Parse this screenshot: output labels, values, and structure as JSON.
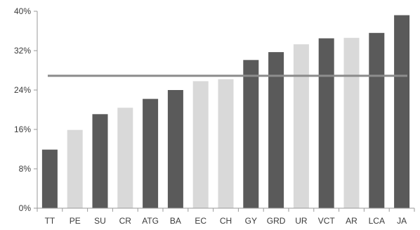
{
  "chart_data": {
    "type": "bar",
    "title": "",
    "xlabel": "",
    "ylabel": "",
    "categories": [
      "TT",
      "PE",
      "SU",
      "CR",
      "ATG",
      "BA",
      "EC",
      "CH",
      "GY",
      "GRD",
      "UR",
      "VCT",
      "AR",
      "LCA",
      "JA"
    ],
    "values": [
      11.9,
      15.9,
      19.1,
      20.4,
      22.2,
      24.0,
      25.8,
      26.2,
      30.1,
      31.7,
      33.3,
      34.5,
      34.6,
      35.6,
      39.2
    ],
    "bar_colors": [
      "#5a5a5a",
      "#d9d9d9",
      "#5a5a5a",
      "#d9d9d9",
      "#5a5a5a",
      "#5a5a5a",
      "#d9d9d9",
      "#d9d9d9",
      "#5a5a5a",
      "#5a5a5a",
      "#d9d9d9",
      "#5a5a5a",
      "#d9d9d9",
      "#5a5a5a",
      "#5a5a5a"
    ],
    "reference_line": 26.9,
    "ylim": [
      0,
      40
    ],
    "yticks": [
      0,
      8,
      16,
      24,
      32,
      40
    ],
    "ytick_labels": [
      "0%",
      "8%",
      "16%",
      "24%",
      "32%",
      "40%"
    ],
    "grid": false,
    "legend": "none"
  }
}
